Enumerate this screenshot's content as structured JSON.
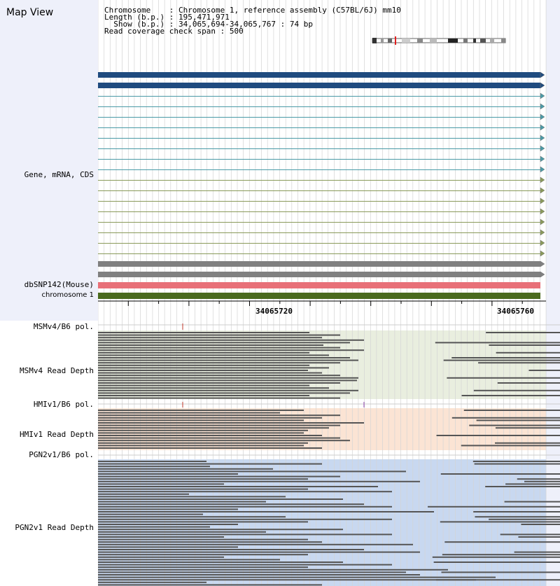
{
  "title": "Map View",
  "header": {
    "chromosome_label": "Chromosome",
    "chromosome_value": ": Chromosome 1, reference assembly (C57BL/6J) mm10",
    "length_label": "Length (b.p.)",
    "length_value": ": 195,471,971",
    "show_label": "Show (b.p.)",
    "show_value": ": 34,065,694-34,065,767 : 74 bp",
    "read_label": "Read coverage check span",
    "read_value": ": 500"
  },
  "tracks": {
    "gene": "Gene, mRNA, CDS",
    "dbsnp": "dbSNP142(Mouse)",
    "chromosome": "chromosome 1",
    "msm_pol": "MSMv4/B6 pol.",
    "msm_depth": "MSMv4 Read Depth",
    "hmi_pol": "HMIv1/B6 pol.",
    "hmi_depth": "HMIv1 Read Depth",
    "pgn_pol": "PGN2v1/B6 pol.",
    "pgn_depth": "PGN2v1 Read Depth"
  },
  "ruler": {
    "tick_labels": [
      "34065720",
      "34065760"
    ]
  },
  "colors": {
    "sidebar_bg": "#eef0fa",
    "gene_dark": "#1f4b7f",
    "gene_teal": "#4a9aa6",
    "gene_olive": "#8a9a5a",
    "gene_gray": "#808080",
    "snp": "#e87078",
    "chromosome": "#4a6a1e",
    "msm_bg": "#e9eedf",
    "hmi_bg": "#fbe4d4",
    "pgn_bg": "#c8d8f0",
    "read": "#555555",
    "snp_marker": "#c0392b"
  }
}
